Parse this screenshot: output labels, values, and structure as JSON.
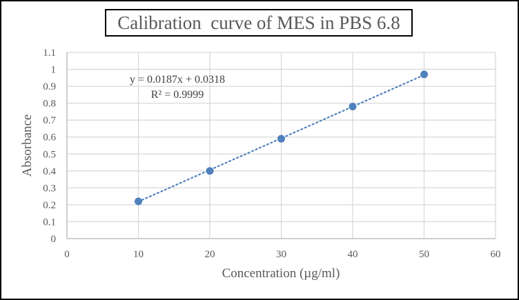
{
  "chart_data": {
    "type": "scatter",
    "title": "Calibration  curve of MES in PBS 6.8",
    "xlabel": "Concentration  (µg/ml)",
    "ylabel": "Absorbance",
    "xlim": [
      0,
      60
    ],
    "ylim": [
      0,
      1.1
    ],
    "x_ticks": [
      "0",
      "10",
      "20",
      "30",
      "40",
      "50",
      "60"
    ],
    "y_ticks": [
      "0",
      "0.1",
      "0.2",
      "0.3",
      "0.4",
      "0.5",
      "0.6",
      "0.7",
      "0.8",
      "0.9",
      "1",
      "1.1"
    ],
    "grid": true,
    "series": [
      {
        "name": "Absorbance",
        "color": "#4f81bd",
        "x": [
          10,
          20,
          30,
          40,
          50
        ],
        "y": [
          0.22,
          0.4,
          0.59,
          0.78,
          0.97
        ]
      }
    ],
    "trendline": {
      "type": "linear",
      "style": "dotted",
      "color": "#4f81bd",
      "slope": 0.0187,
      "intercept": 0.0318,
      "x_range": [
        10,
        50
      ],
      "equation_label": "y = 0.0187x + 0.0318",
      "r2_label": "R² = 0.9999"
    }
  },
  "colors": {
    "grid": "#d9d9d9",
    "axis": "#bfbfbf",
    "text": "#595959",
    "marker": "#4f81bd"
  }
}
